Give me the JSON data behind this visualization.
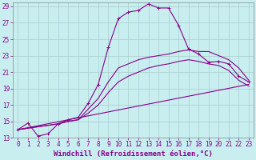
{
  "xlabel": "Windchill (Refroidissement éolien,°C)",
  "background_color": "#c8eef0",
  "line_color": "#880088",
  "grid_color": "#aacccc",
  "ylim": [
    13,
    29.5
  ],
  "xlim": [
    -0.5,
    23.5
  ],
  "yticks": [
    13,
    15,
    17,
    19,
    21,
    23,
    25,
    27,
    29
  ],
  "xticks": [
    0,
    1,
    2,
    3,
    4,
    5,
    6,
    7,
    8,
    9,
    10,
    11,
    12,
    13,
    14,
    15,
    16,
    17,
    18,
    19,
    20,
    21,
    22,
    23
  ],
  "series": [
    {
      "name": "peak_curve",
      "x": [
        0,
        1,
        2,
        3,
        4,
        5,
        6,
        7,
        8,
        9,
        10,
        11,
        12,
        13,
        14,
        15,
        16,
        17,
        18,
        19,
        20,
        21,
        22,
        23
      ],
      "y": [
        14.0,
        14.8,
        13.2,
        13.5,
        14.7,
        15.2,
        15.5,
        17.2,
        19.5,
        24.0,
        27.5,
        28.3,
        28.5,
        29.3,
        28.8,
        28.8,
        26.7,
        23.8,
        23.2,
        22.2,
        22.3,
        22.0,
        20.5,
        19.8
      ],
      "has_markers": true
    },
    {
      "name": "upper_curve",
      "x": [
        0,
        4,
        5,
        6,
        7,
        8,
        9,
        10,
        11,
        12,
        13,
        14,
        15,
        16,
        17,
        18,
        19,
        20,
        21,
        22,
        23
      ],
      "y": [
        14.0,
        14.7,
        15.0,
        15.2,
        16.5,
        17.8,
        19.8,
        21.5,
        22.0,
        22.5,
        22.8,
        23.0,
        23.2,
        23.5,
        23.7,
        23.5,
        23.5,
        23.0,
        22.5,
        21.5,
        20.0
      ],
      "has_markers": false
    },
    {
      "name": "mid_curve",
      "x": [
        0,
        4,
        5,
        6,
        7,
        8,
        9,
        10,
        11,
        12,
        13,
        14,
        15,
        16,
        17,
        18,
        19,
        20,
        21,
        22,
        23
      ],
      "y": [
        14.0,
        14.7,
        15.0,
        15.2,
        16.0,
        17.0,
        18.5,
        19.8,
        20.5,
        21.0,
        21.5,
        21.8,
        22.0,
        22.3,
        22.5,
        22.3,
        22.0,
        21.8,
        21.2,
        20.0,
        19.3
      ],
      "has_markers": false
    },
    {
      "name": "straight_line",
      "x": [
        0,
        23
      ],
      "y": [
        14.0,
        19.5
      ],
      "has_markers": false
    }
  ],
  "xlabel_fontsize": 6.5,
  "tick_fontsize": 5.5
}
